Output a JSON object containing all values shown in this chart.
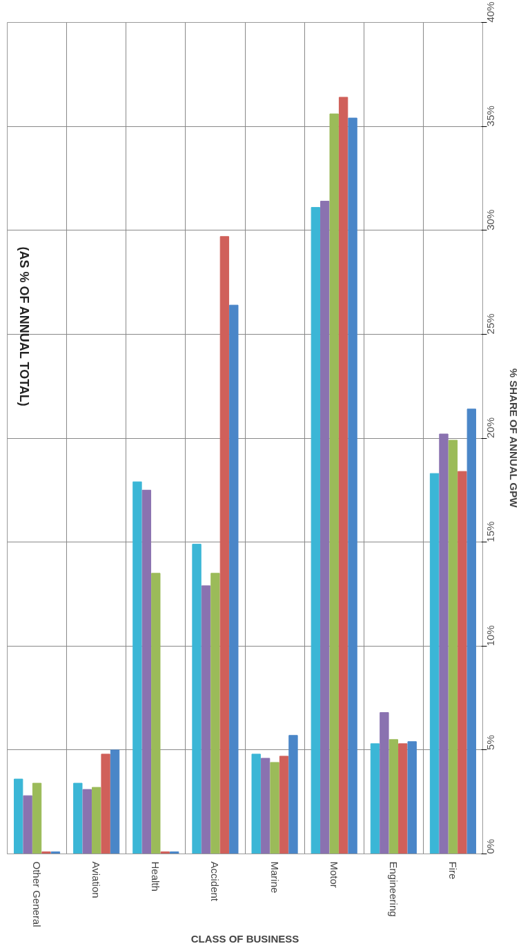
{
  "chart_data": {
    "type": "bar",
    "title": "(AS % OF ANNUAL TOTAL)",
    "xlabel": "CLASS OF BUSINESS",
    "ylabel": "% SHARE OF ANNUAL GPW",
    "categories": [
      "Other General",
      "Aviation",
      "Health",
      "Accident",
      "Marine",
      "Motor",
      "Engineering",
      "Fire"
    ],
    "series": [
      {
        "color": "#3bb6d6",
        "values": [
          3.6,
          3.4,
          17.9,
          14.9,
          4.8,
          31.1,
          5.3,
          18.3
        ]
      },
      {
        "color": "#8a72b0",
        "values": [
          2.8,
          3.1,
          17.5,
          12.9,
          4.6,
          31.4,
          6.8,
          20.2
        ]
      },
      {
        "color": "#9bbb59",
        "values": [
          3.4,
          3.2,
          13.5,
          13.5,
          4.4,
          35.6,
          5.5,
          19.9
        ]
      },
      {
        "color": "#d0605a",
        "values": [
          0.1,
          4.8,
          0.1,
          29.7,
          4.7,
          36.4,
          5.3,
          18.4
        ]
      },
      {
        "color": "#4a86c8",
        "values": [
          0.1,
          5.0,
          0.1,
          26.4,
          5.7,
          35.4,
          5.4,
          21.4
        ]
      }
    ],
    "ylim": [
      0,
      40
    ],
    "yticks": [
      {
        "value": 0,
        "label": "0%"
      },
      {
        "value": 5,
        "label": "5%"
      },
      {
        "value": 10,
        "label": "10%"
      },
      {
        "value": 15,
        "label": "15%"
      },
      {
        "value": 20,
        "label": "20%"
      },
      {
        "value": 25,
        "label": "25%"
      },
      {
        "value": 30,
        "label": "30%"
      },
      {
        "value": 35,
        "label": "35%"
      },
      {
        "value": 40,
        "label": "40%"
      }
    ],
    "grid": true
  }
}
